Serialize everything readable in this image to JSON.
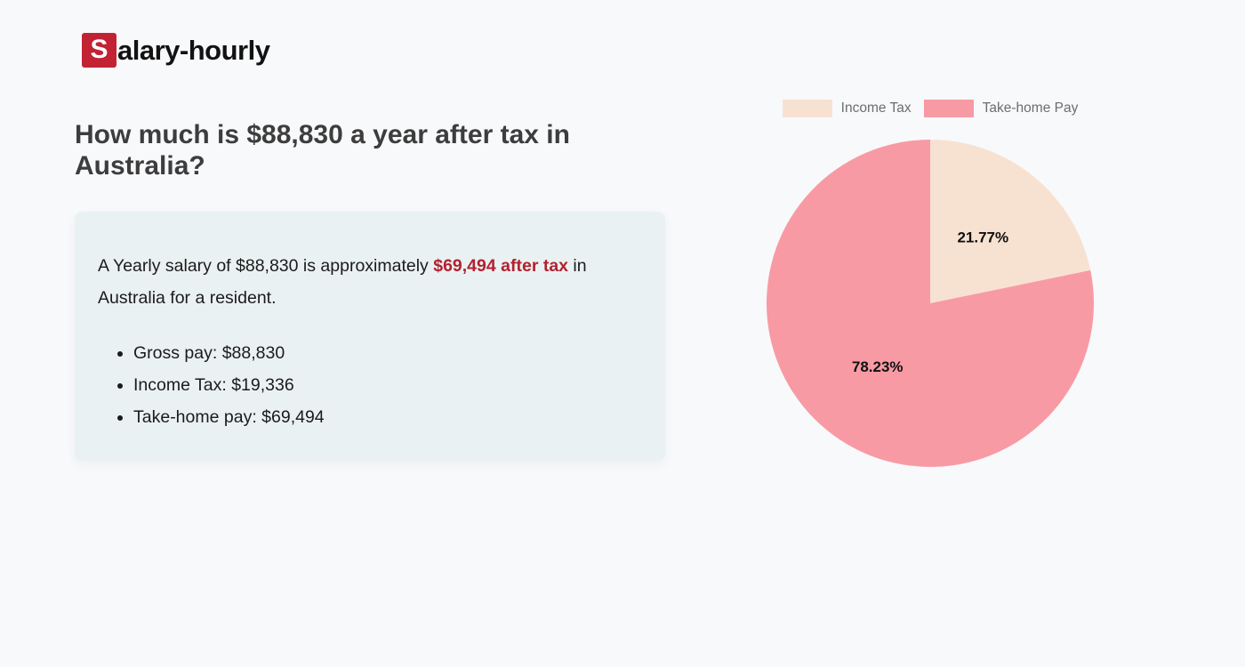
{
  "brand": {
    "logo_letter": "S",
    "logo_rest": "alary-hourly"
  },
  "page": {
    "heading": "How much is $88,830 a year after tax in Australia?",
    "summary": {
      "before_highlight": "A Yearly salary of $88,830 is approximately ",
      "highlight": "$69,494 after tax",
      "after_highlight": " in Australia for a resident."
    },
    "bullets": [
      "Gross pay: $88,830",
      "Income Tax: $19,336",
      "Take-home pay: $69,494"
    ]
  },
  "chart_data": {
    "type": "pie",
    "title": "",
    "legend_position": "top",
    "direction": "clockwise",
    "start_angle_deg": 0,
    "slices": [
      {
        "name": "Income Tax",
        "value": 21.77,
        "label": "21.77%",
        "color": "#f7e2d2"
      },
      {
        "name": "Take-home Pay",
        "value": 78.23,
        "label": "78.23%",
        "color": "#f89aa4"
      }
    ],
    "label_distance_ratio": 0.51,
    "label_color": "#111111"
  },
  "colors": {
    "page_bg": "#f8f9fb",
    "box_bg": "#eaf1f2",
    "heading": "#3d3d3d",
    "text": "#1b1b1b",
    "highlight_red": "#b22230",
    "logo_red": "#c22233",
    "legend_text": "#6d6d6d"
  }
}
